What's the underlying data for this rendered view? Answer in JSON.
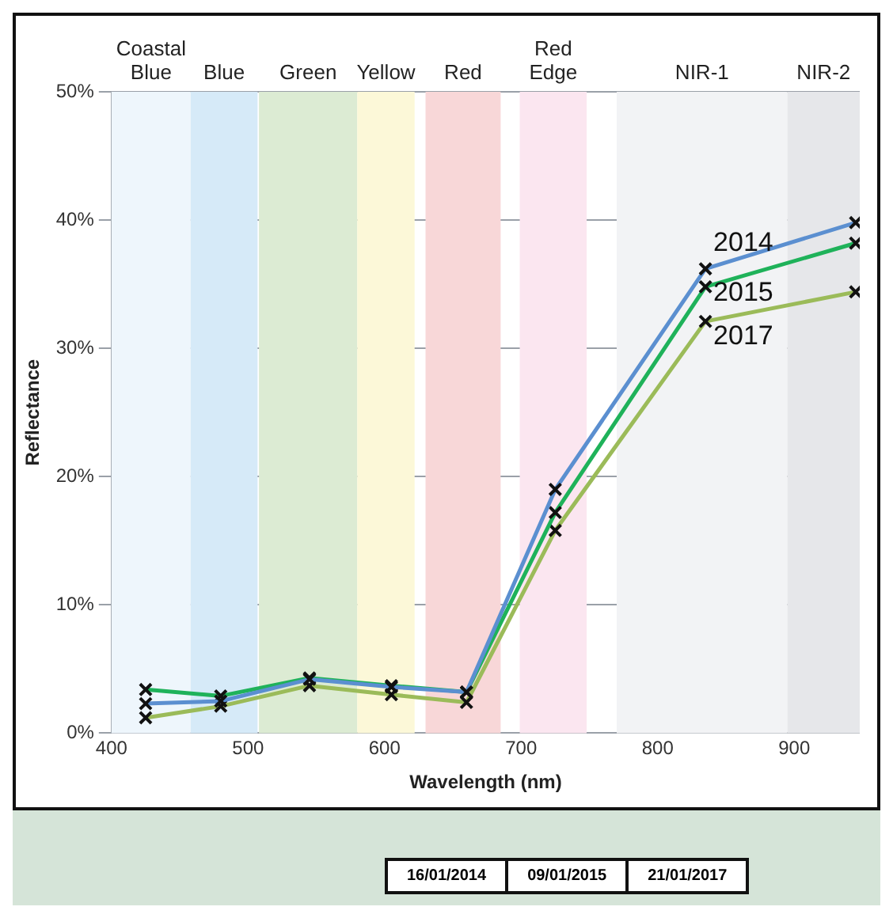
{
  "chart_data": {
    "type": "line",
    "xlabel": "Wavelength (nm)",
    "ylabel": "Reflectance",
    "x": [
      425,
      480,
      545,
      605,
      660,
      725,
      835,
      945
    ],
    "series": [
      {
        "name": "2014",
        "color": "#5b8fd0",
        "values": [
          2.3,
          2.5,
          4.2,
          3.6,
          3.2,
          19,
          36.2,
          39.8
        ]
      },
      {
        "name": "2015",
        "color": "#1fb25a",
        "values": [
          3.4,
          2.9,
          4.3,
          3.7,
          3.2,
          17.2,
          34.8,
          38.2
        ]
      },
      {
        "name": "2017",
        "color": "#9bbb59",
        "values": [
          1.2,
          2.1,
          3.7,
          3.0,
          2.4,
          15.8,
          32.1,
          34.4
        ]
      }
    ],
    "xlim": [
      400,
      948
    ],
    "xticks": [
      400,
      500,
      600,
      700,
      800,
      900
    ],
    "ylim": [
      0,
      50
    ],
    "yticks": [
      {
        "value": 0,
        "label": "0%"
      },
      {
        "value": 10,
        "label": "10%"
      },
      {
        "value": 20,
        "label": "20%"
      },
      {
        "value": 30,
        "label": "30%"
      },
      {
        "value": 40,
        "label": "40%"
      },
      {
        "value": 50,
        "label": "50%"
      }
    ],
    "bands": [
      {
        "axis": "x",
        "from": 400,
        "to": 458,
        "label": "Coastal Blue",
        "color": "#eef6fc"
      },
      {
        "axis": "x",
        "from": 458,
        "to": 507,
        "label": "Blue",
        "color": "#d6eaf8"
      },
      {
        "axis": "x",
        "from": 508,
        "to": 580,
        "label": "Green",
        "color": "#dcebd3"
      },
      {
        "axis": "x",
        "from": 580,
        "to": 622,
        "label": "Yellow",
        "color": "#fcf8d8"
      },
      {
        "axis": "x",
        "from": 630,
        "to": 685,
        "label": "Red",
        "color": "#f8d7d8"
      },
      {
        "axis": "x",
        "from": 699,
        "to": 748,
        "label": "Red Edge",
        "color": "#fbe6f0"
      },
      {
        "axis": "x",
        "from": 770,
        "to": 895,
        "label": "NIR-1",
        "color": "#f2f3f5"
      },
      {
        "axis": "x",
        "from": 895,
        "to": 948,
        "label": "NIR-2",
        "color": "#e6e7ea"
      }
    ],
    "grid": true,
    "legend": false,
    "marker": "cross",
    "line_style": "solid",
    "annotations": [
      "16/01/2014",
      "09/01/2015",
      "21/01/2017"
    ]
  }
}
